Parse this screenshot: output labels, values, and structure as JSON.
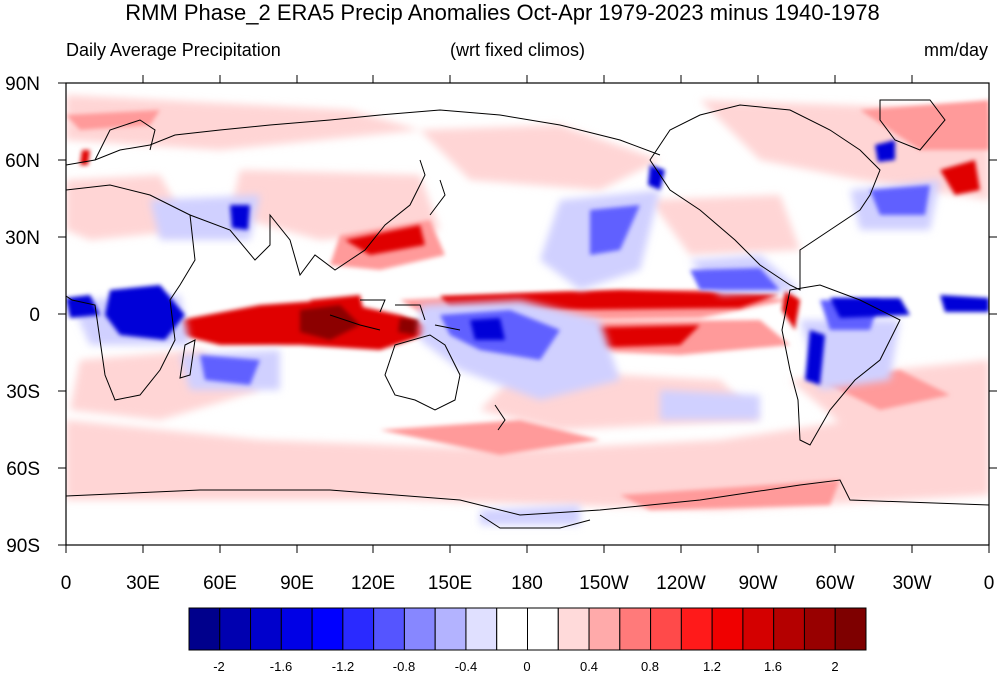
{
  "header": {
    "title": "RMM Phase_2 ERA5 Precip Anomalies Oct-Apr 1979-2023 minus 1940-1978",
    "left_subtitle": "Daily Average Precipitation",
    "center_subtitle": "(wrt fixed climos)",
    "right_subtitle": "mm/day"
  },
  "axes": {
    "y_ticks": [
      "90N",
      "60N",
      "30N",
      "0",
      "30S",
      "60S",
      "90S"
    ],
    "x_ticks": [
      "0",
      "30E",
      "60E",
      "90E",
      "120E",
      "150E",
      "180",
      "150W",
      "120W",
      "90W",
      "60W",
      "30W",
      "0"
    ]
  },
  "colorbar": {
    "labels": [
      "-2",
      "-1.6",
      "-1.2",
      "-0.8",
      "-0.4",
      "0",
      "0.4",
      "0.8",
      "1.2",
      "1.6",
      "2"
    ],
    "colors": [
      "#00008c",
      "#0000b0",
      "#0000cc",
      "#0000e6",
      "#0000ff",
      "#2a2aff",
      "#5555ff",
      "#8787ff",
      "#b3b3ff",
      "#e0e0ff",
      "#ffffff",
      "#ffffff",
      "#ffdada",
      "#ffaaaa",
      "#ff7a7a",
      "#ff4a4a",
      "#ff1a1a",
      "#f00000",
      "#d40000",
      "#b40000",
      "#980000",
      "#7e0000"
    ]
  },
  "colors": {
    "land_outline": "#000000",
    "positive": "#e60000",
    "negative": "#0000e6"
  }
}
